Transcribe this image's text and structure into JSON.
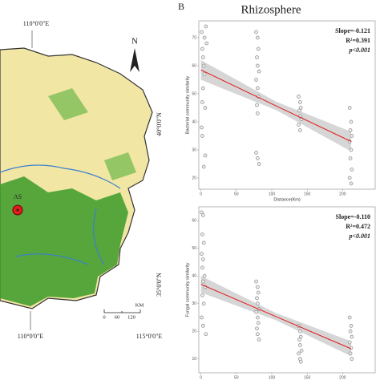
{
  "map": {
    "lon_top": "110°0'0\"E",
    "lat_upper": "40°0'0\"N",
    "lat_lower": "35°0'0\"N",
    "lon_bottom_left": "110°0'0\"E",
    "lon_bottom_right": "115°0'0\"E",
    "north": "N",
    "site": "AS",
    "scale_0": "0",
    "scale_60": "60",
    "scale_120": "120",
    "scale_unit": "KM"
  },
  "panel_label": "B",
  "chart_data": [
    {
      "type": "scatter",
      "title": "Rhizosphere",
      "x_label": "Distance(Km)",
      "y_label": "Bacterial community similarity",
      "annotations": [
        "Slope=-0.121",
        "R²=0.391",
        "p<0.001"
      ],
      "x": [
        1,
        2,
        3,
        4,
        5,
        3,
        2,
        6,
        1,
        2,
        4,
        6,
        7,
        8,
        5,
        78,
        80,
        81,
        79,
        80,
        82,
        78,
        80,
        81,
        79,
        80,
        78,
        80,
        82,
        138,
        140,
        141,
        139,
        140,
        142,
        138,
        140,
        210,
        212,
        211,
        213,
        210,
        212,
        211,
        213,
        210,
        212
      ],
      "values": [
        72,
        66,
        63,
        60,
        57,
        52,
        47,
        45,
        38,
        35,
        24,
        28,
        74,
        68,
        70,
        72,
        70,
        66,
        63,
        60,
        58,
        55,
        52,
        49,
        46,
        43,
        29,
        27,
        25,
        49,
        47,
        45,
        44,
        42,
        41,
        39,
        37,
        45,
        40,
        37,
        35,
        33,
        30,
        27,
        23,
        20,
        18
      ],
      "color": "#888888",
      "fit": {
        "x": [
          0,
          106,
          212
        ],
        "values": [
          58.5,
          45.7,
          33
        ],
        "lower": [
          55,
          44.2,
          29.5
        ],
        "upper": [
          62,
          47.2,
          36.5
        ],
        "color": "#e31a1c"
      },
      "xlim": [
        -3,
        246
      ],
      "ylim": [
        16,
        76
      ],
      "xticks": [
        0,
        50,
        100,
        150,
        200
      ],
      "yticks": [
        20,
        30,
        40,
        50,
        60,
        70
      ]
    },
    {
      "type": "scatter",
      "x_label": "Distance(Km)",
      "y_label": "Fungal community similarity",
      "annotations": [
        "Slope=-0.110",
        "R²=0.472",
        "p<0.001"
      ],
      "x": [
        1,
        3,
        2,
        4,
        1,
        3,
        2,
        5,
        3,
        6,
        2,
        4,
        1,
        3,
        7,
        78,
        80,
        81,
        79,
        80,
        82,
        78,
        80,
        81,
        79,
        80,
        82,
        138,
        140,
        141,
        139,
        140,
        142,
        138,
        140,
        141,
        210,
        212,
        211,
        213,
        210,
        212,
        211,
        213
      ],
      "values": [
        63,
        62,
        55,
        52,
        48,
        46,
        43,
        40,
        38,
        36,
        33,
        30,
        25,
        22,
        19,
        38,
        36,
        34,
        32,
        30,
        28,
        27,
        25,
        23,
        21,
        19,
        17,
        22,
        20,
        18,
        17,
        15,
        13,
        12,
        10,
        9,
        25,
        22,
        20,
        18,
        16,
        14,
        12,
        10
      ],
      "color": "#888888",
      "fit": {
        "x": [
          0,
          106,
          212
        ],
        "values": [
          37,
          25.3,
          13.7
        ],
        "lower": [
          34,
          24,
          11
        ],
        "upper": [
          40,
          26.6,
          16.4
        ],
        "color": "#e31a1c"
      },
      "xlim": [
        -3,
        246
      ],
      "ylim": [
        5,
        65
      ],
      "xticks": [
        0,
        50,
        100,
        150,
        200
      ],
      "yticks": [
        10,
        20,
        30,
        40,
        50,
        60
      ]
    }
  ]
}
